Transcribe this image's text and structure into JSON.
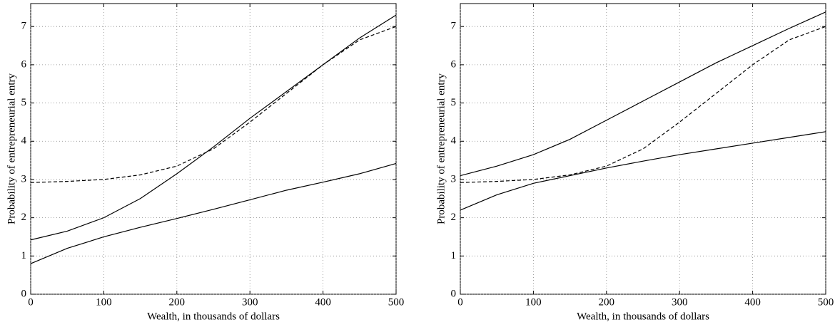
{
  "chart_data": [
    {
      "type": "line",
      "xlabel": "Wealth, in thousands of dollars",
      "ylabel": "Probability of entrepreneurial entry",
      "x": [
        0,
        50,
        100,
        150,
        200,
        250,
        300,
        350,
        400,
        450,
        500
      ],
      "series": [
        {
          "color": "#000000",
          "linestyle": "solid",
          "values": [
            1.42,
            1.65,
            2.0,
            2.5,
            3.15,
            3.85,
            4.6,
            5.3,
            6.0,
            6.7,
            7.3
          ]
        },
        {
          "color": "#000000",
          "linestyle": "solid",
          "values": [
            0.8,
            1.2,
            1.5,
            1.75,
            1.98,
            2.22,
            2.47,
            2.72,
            2.93,
            3.15,
            3.42
          ]
        },
        {
          "color": "#000000",
          "linestyle": "dashed",
          "values": [
            2.92,
            2.95,
            3.0,
            3.12,
            3.35,
            3.8,
            4.5,
            5.25,
            6.0,
            6.65,
            7.0
          ]
        }
      ],
      "xlim": [
        0,
        500
      ],
      "xticks": [
        0,
        100,
        200,
        300,
        400,
        500
      ],
      "ylim": [
        0,
        7.6
      ],
      "yticks": [
        0,
        1,
        2,
        3,
        4,
        5,
        6,
        7
      ],
      "grid": true
    },
    {
      "type": "line",
      "xlabel": "Wealth, in thousands of dollars",
      "ylabel": "Probability of entrepreneurial entry",
      "x": [
        0,
        50,
        100,
        150,
        200,
        250,
        300,
        350,
        400,
        450,
        500
      ],
      "series": [
        {
          "color": "#000000",
          "linestyle": "solid",
          "values": [
            3.1,
            3.35,
            3.65,
            4.05,
            4.55,
            5.05,
            5.55,
            6.05,
            6.5,
            6.95,
            7.38
          ]
        },
        {
          "color": "#000000",
          "linestyle": "solid",
          "values": [
            2.2,
            2.6,
            2.9,
            3.1,
            3.3,
            3.48,
            3.65,
            3.8,
            3.95,
            4.1,
            4.25
          ]
        },
        {
          "color": "#000000",
          "linestyle": "dashed",
          "values": [
            2.92,
            2.95,
            3.0,
            3.12,
            3.35,
            3.8,
            4.5,
            5.25,
            6.0,
            6.65,
            7.0
          ]
        }
      ],
      "xlim": [
        0,
        500
      ],
      "xticks": [
        0,
        100,
        200,
        300,
        400,
        500
      ],
      "ylim": [
        0,
        7.6
      ],
      "yticks": [
        0,
        1,
        2,
        3,
        4,
        5,
        6,
        7
      ],
      "grid": true
    }
  ]
}
